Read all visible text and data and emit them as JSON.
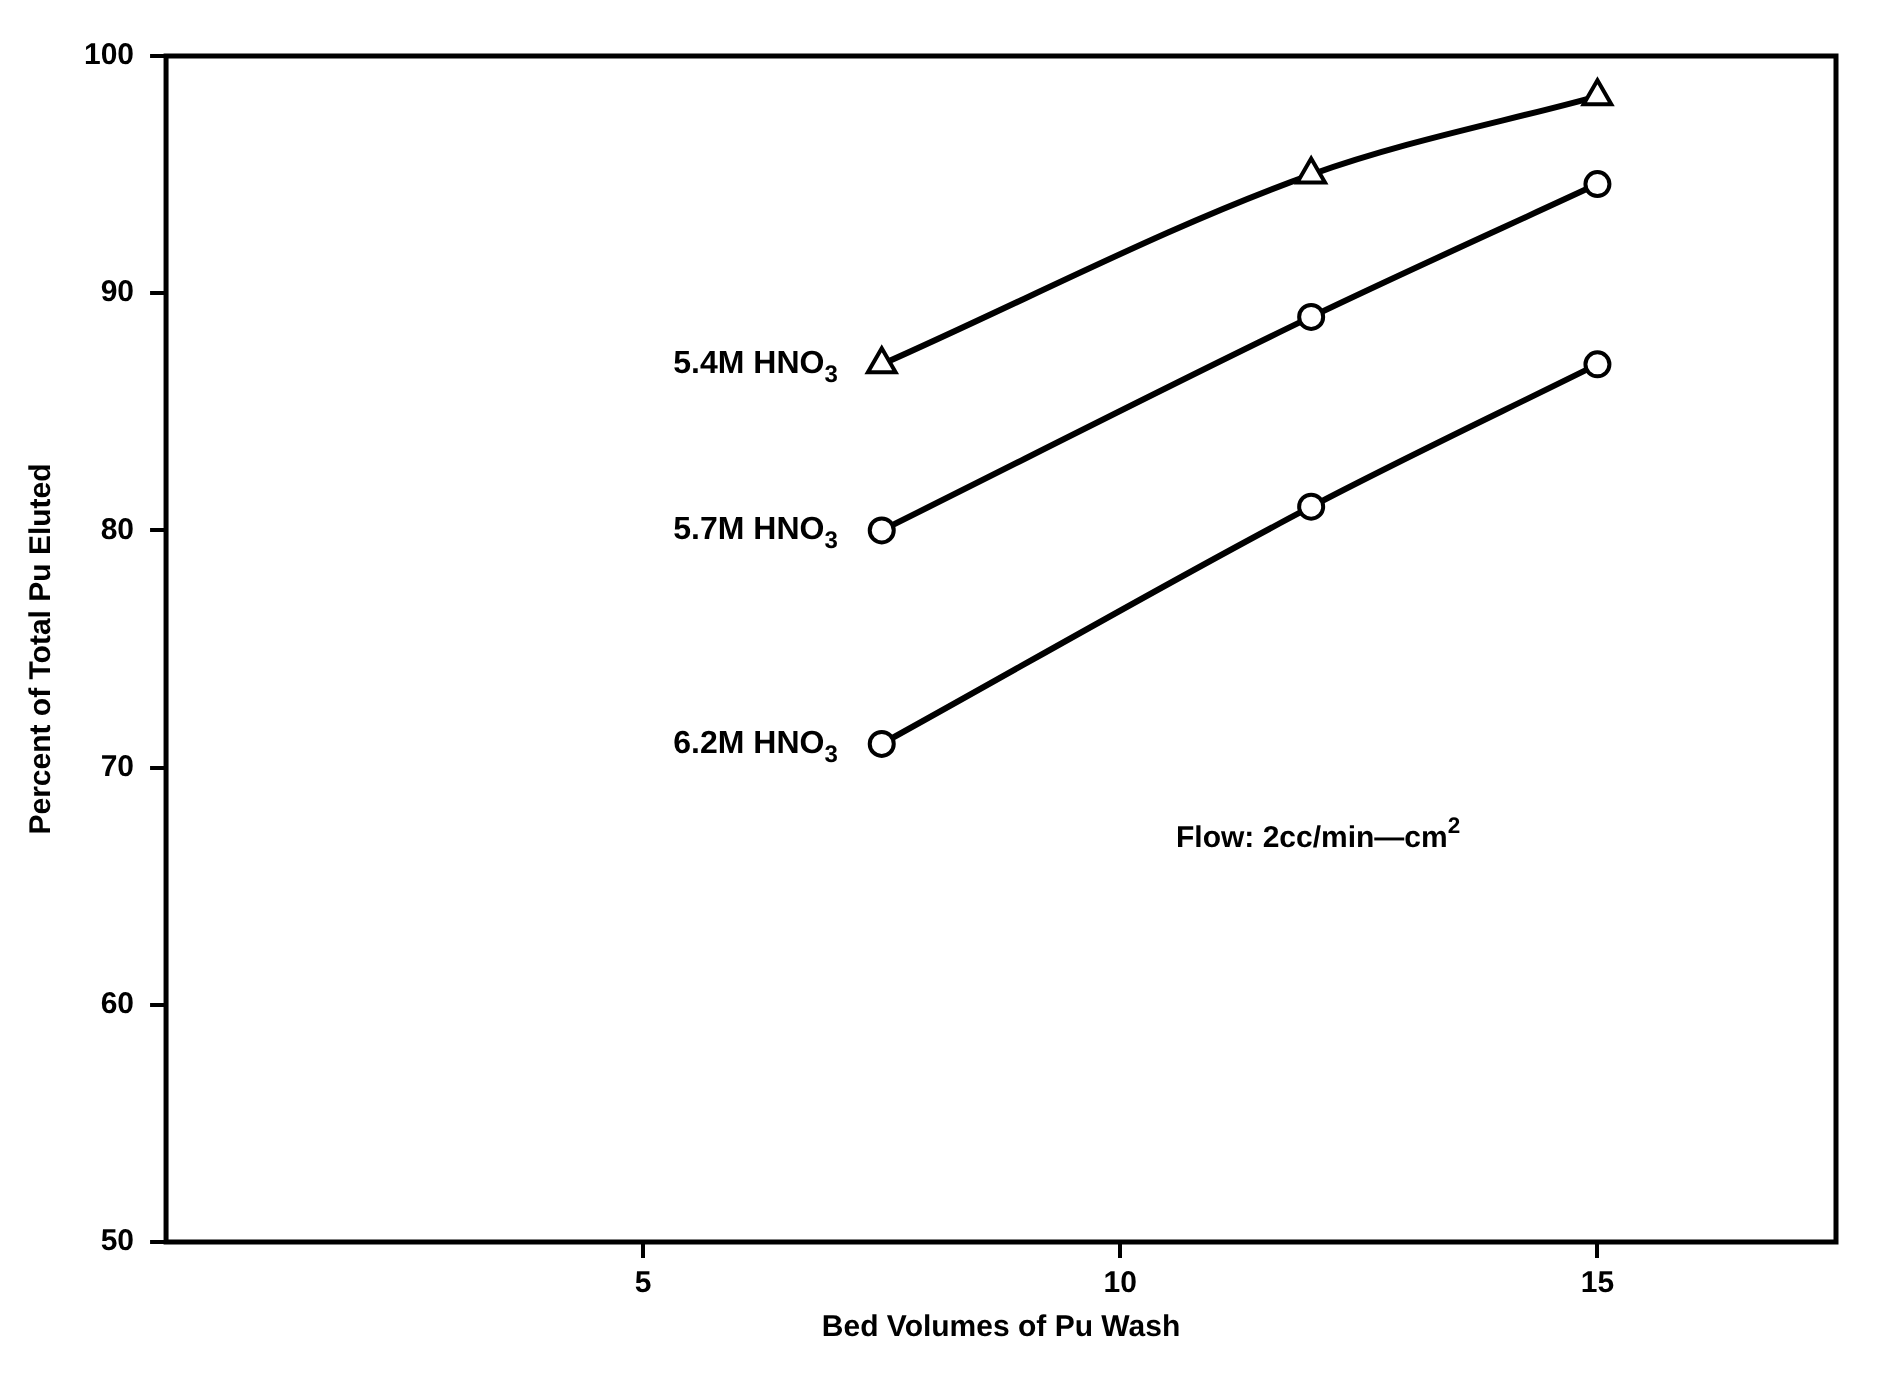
{
  "chart_data": {
    "type": "line",
    "xlabel": "Bed Volumes of Pu Wash",
    "ylabel": "Percent of Total Pu Eluted",
    "xlim": [
      0,
      17.5
    ],
    "xticks": [
      5,
      10,
      15
    ],
    "ylim": [
      50,
      100
    ],
    "yticks": [
      50,
      60,
      70,
      80,
      90,
      100
    ],
    "grid": false,
    "legend": false,
    "series": [
      {
        "name": "5.4M HNO$_{3}$",
        "color": "#000000",
        "marker": "triangle",
        "x": [
          7.5,
          12,
          15
        ],
        "values": [
          87,
          95,
          98.3
        ]
      },
      {
        "name": "5.7M HNO$_{3}$",
        "color": "#000000",
        "marker": "circle",
        "x": [
          7.5,
          12,
          15
        ],
        "values": [
          80,
          89,
          94.6
        ]
      },
      {
        "name": "6.2M HNO$_{3}$",
        "color": "#000000",
        "marker": "circle",
        "x": [
          7.5,
          12,
          15
        ],
        "values": [
          71,
          81,
          87
        ]
      }
    ],
    "annotations": [
      "Flow: 2cc/min—cm$^{2}$"
    ]
  }
}
